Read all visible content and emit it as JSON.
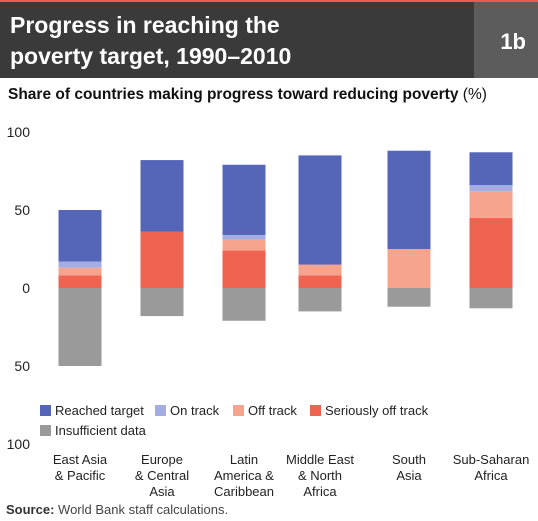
{
  "header": {
    "title_line1": "Progress in reaching the",
    "title_line2": "poverty target, 1990–2010",
    "badge": "1b"
  },
  "subtitle": {
    "bold": "Share of countries making progress toward reducing poverty",
    "unit": "(%)"
  },
  "source": {
    "label": "Source:",
    "text": "World Bank staff calculations."
  },
  "chart_data": {
    "type": "bar",
    "stacked": true,
    "title": "Share of countries making progress toward reducing poverty (%)",
    "yticks": [
      "100",
      "50",
      "0",
      "50",
      "100"
    ],
    "ylim": [
      -100,
      100
    ],
    "categories": [
      [
        "East Asia",
        "& Pacific"
      ],
      [
        "Europe",
        "& Central",
        "Asia"
      ],
      [
        "Latin",
        "America &",
        "Caribbean"
      ],
      [
        "Middle East",
        "& North",
        "Africa"
      ],
      [
        "South",
        "Asia"
      ],
      [
        "Sub-Saharan",
        "Africa"
      ]
    ],
    "series": [
      {
        "name": "Seriously off track",
        "color": "#ef6351",
        "values": [
          8,
          36,
          24,
          8,
          0,
          45
        ]
      },
      {
        "name": "Off track",
        "color": "#f7a48e",
        "values": [
          5,
          0,
          7,
          7,
          25,
          17
        ]
      },
      {
        "name": "On track",
        "color": "#a3ace3",
        "values": [
          4,
          0,
          3,
          0,
          0,
          4
        ]
      },
      {
        "name": "Reached target",
        "color": "#5566b8",
        "values": [
          33,
          46,
          45,
          70,
          63,
          21
        ]
      },
      {
        "name": "Insufficient data",
        "color": "#9a9a9a",
        "values": [
          -50,
          -18,
          -21,
          -15,
          -12,
          -13
        ]
      }
    ],
    "legend_order": [
      "Reached target",
      "On track",
      "Off track",
      "Seriously off track",
      "Insufficient data"
    ],
    "legend_position": "bottom-left",
    "grid": false
  }
}
